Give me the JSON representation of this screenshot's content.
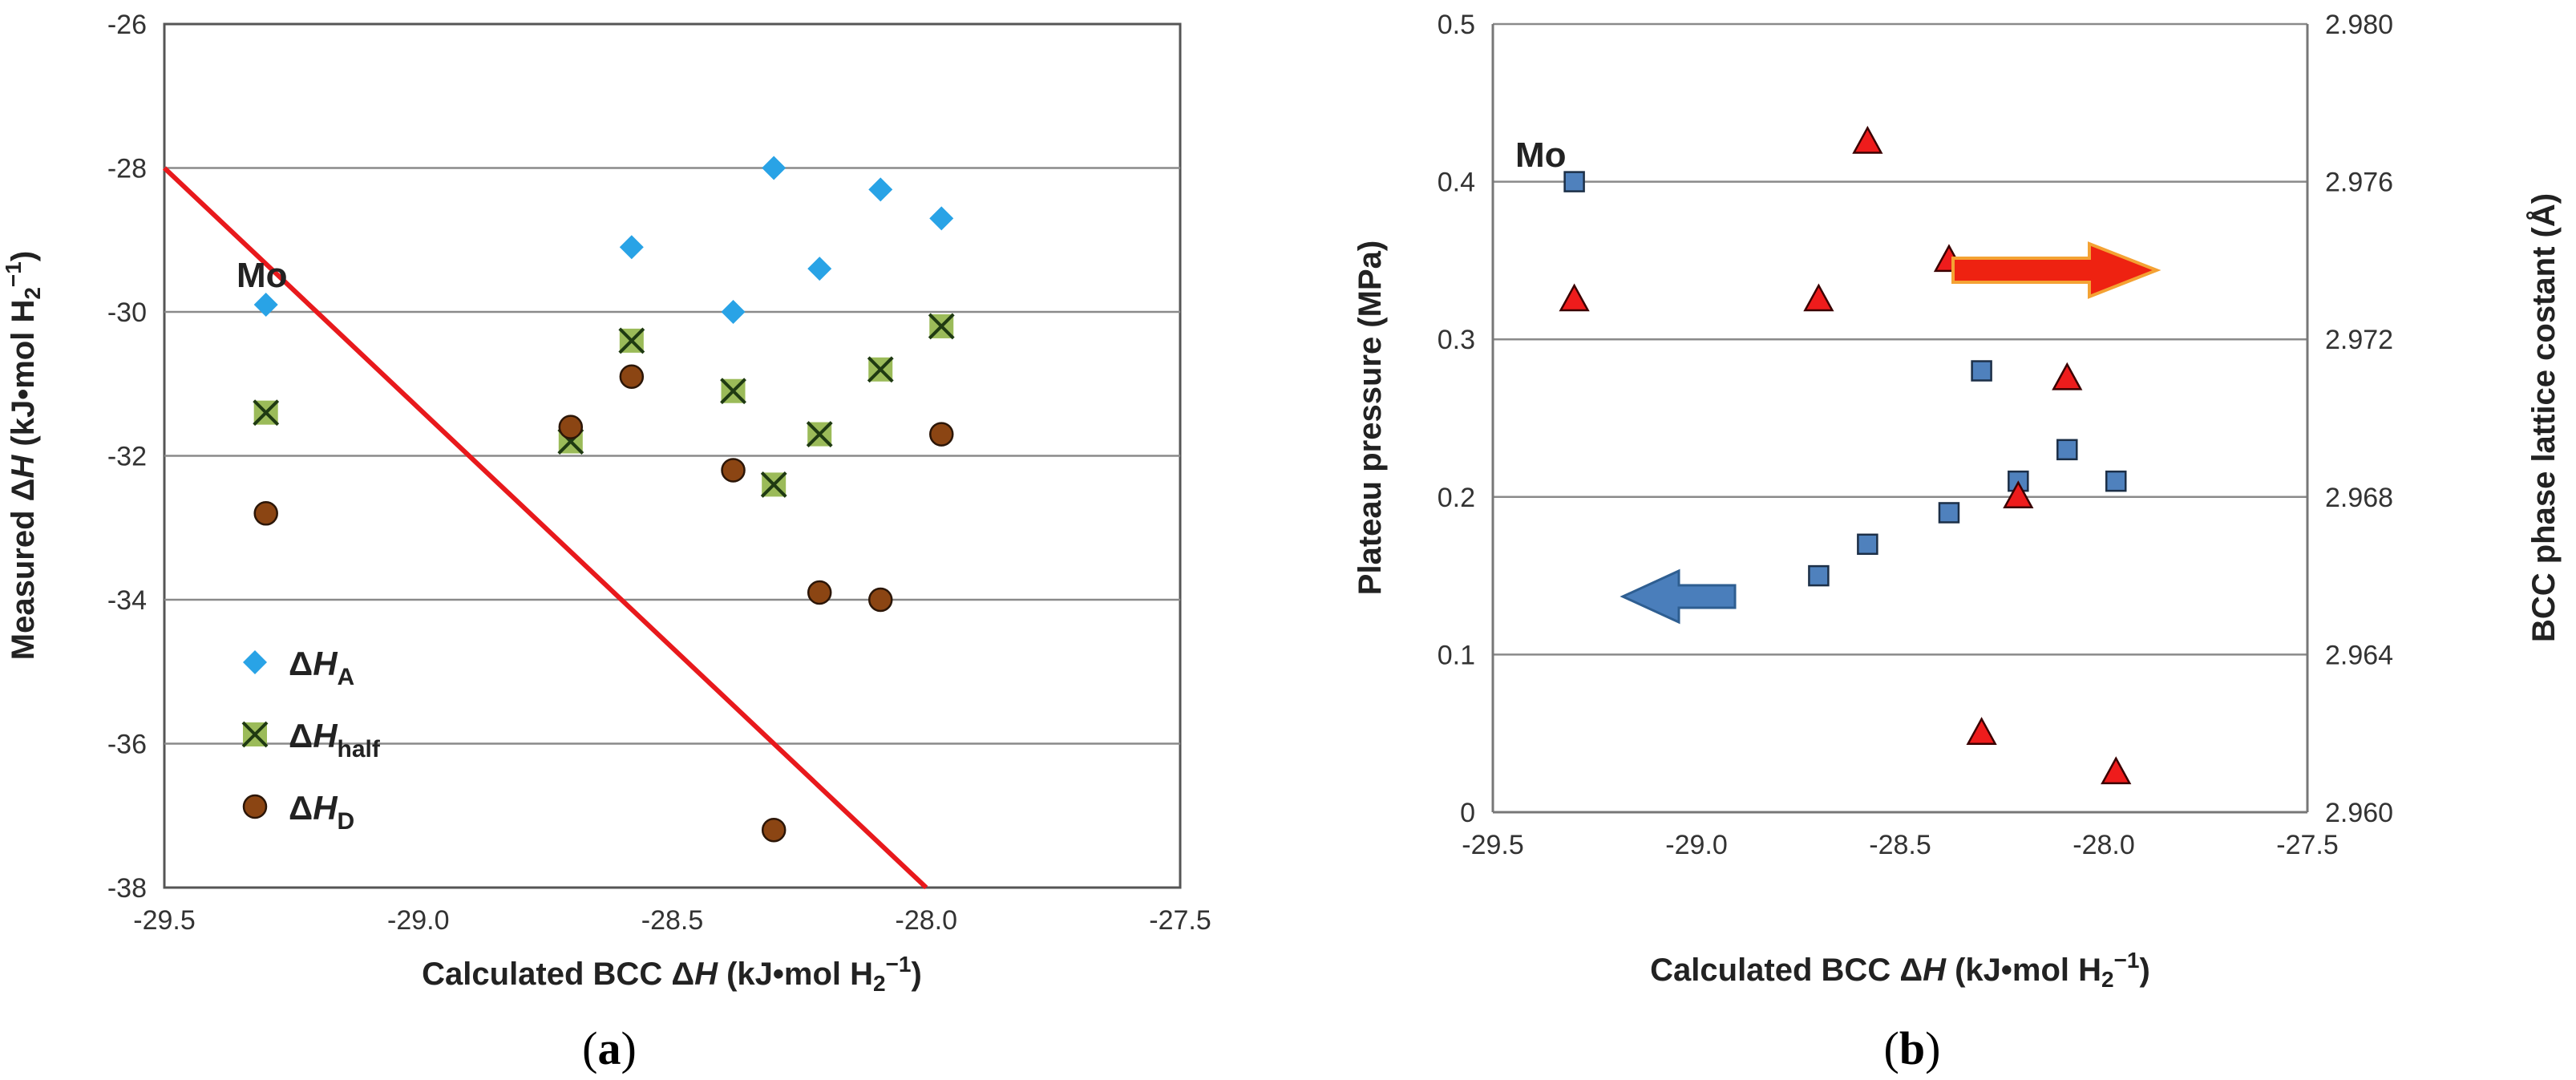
{
  "chart_data": [
    {
      "id": "a",
      "type": "scatter",
      "panel_label_open": "(",
      "panel_label_letter": "a",
      "panel_label_close": ")",
      "xlabel_pre": "Calculated BCC ",
      "xlabel_delta": "Δ",
      "xlabel_H": "H",
      "xlabel_post": " (kJ•mol H",
      "xlabel_sub": "2",
      "xlabel_sup": "−1",
      "xlabel_close": ")",
      "ylabel_pre": "Measured ",
      "ylabel_delta": "Δ",
      "ylabel_H": "H",
      "ylabel_post": " (kJ•mol H",
      "ylabel_sub": "2",
      "ylabel_sup": "−1",
      "ylabel_close": ")",
      "xlim": [
        -29.5,
        -27.5
      ],
      "ylim": [
        -38,
        -26
      ],
      "xticks": [
        -29.5,
        -29.0,
        -28.5,
        -28.0,
        -27.5
      ],
      "xtick_labels": [
        "-29.5",
        "-29.0",
        "-28.5",
        "-28.0",
        "-27.5"
      ],
      "yticks": [
        -38,
        -36,
        -34,
        -32,
        -30,
        -28,
        -26
      ],
      "ytick_labels": [
        "-38",
        "-36",
        "-34",
        "-32",
        "-30",
        "-28",
        "-26"
      ],
      "grid_y": true,
      "annotation": "Mo",
      "series": [
        {
          "name": "ΔH_A",
          "legend_delta": "Δ",
          "legend_H": "H",
          "legend_sub": "A",
          "marker": "diamond",
          "color": "#29a3e6",
          "x": [
            -29.3,
            -28.58,
            -28.38,
            -28.3,
            -28.21,
            -28.09,
            -27.97
          ],
          "y": [
            -29.9,
            -29.1,
            -30.0,
            -28.0,
            -29.4,
            -28.3,
            -28.7
          ]
        },
        {
          "name": "ΔH_half",
          "legend_delta": "Δ",
          "legend_H": "H",
          "legend_sub": "half",
          "marker": "x-box",
          "color": "#9bbb59",
          "x": [
            -29.3,
            -28.7,
            -28.58,
            -28.38,
            -28.3,
            -28.21,
            -28.09,
            -27.97
          ],
          "y": [
            -31.4,
            -31.8,
            -30.4,
            -31.1,
            -32.4,
            -31.7,
            -30.8,
            -30.2
          ]
        },
        {
          "name": "ΔH_D",
          "legend_delta": "Δ",
          "legend_H": "H",
          "legend_sub": "D",
          "marker": "circle",
          "color": "#8b4513",
          "x": [
            -29.3,
            -28.7,
            -28.58,
            -28.38,
            -28.3,
            -28.21,
            -28.09,
            -27.97
          ],
          "y": [
            -32.8,
            -31.6,
            -30.9,
            -32.2,
            -37.2,
            -33.9,
            -34.0,
            -31.7
          ]
        }
      ],
      "reference_line": {
        "x": [
          -29.5,
          -28.0
        ],
        "y": [
          -28.0,
          -38.0
        ],
        "color": "#e8191c"
      }
    },
    {
      "id": "b",
      "type": "scatter",
      "panel_label_open": "(",
      "panel_label_letter": "b",
      "panel_label_close": ")",
      "xlabel_pre": "Calculated BCC ",
      "xlabel_delta": "Δ",
      "xlabel_H": "H",
      "xlabel_post": " (kJ•mol H",
      "xlabel_sub": "2",
      "xlabel_sup": "−1",
      "xlabel_close": ")",
      "ylabel_left": "Plateau pressure (MPa)",
      "ylabel_right": "BCC phase lattice costant (Å)",
      "xlim": [
        -29.5,
        -27.5
      ],
      "ylim_left": [
        0,
        0.5
      ],
      "ylim_right": [
        2.96,
        2.98
      ],
      "xticks": [
        -29.5,
        -29.0,
        -28.5,
        -28.0,
        -27.5
      ],
      "xtick_labels": [
        "-29.5",
        "-29.0",
        "-28.5",
        "-28.0",
        "-27.5"
      ],
      "yticks_left": [
        0,
        0.1,
        0.2,
        0.3,
        0.4,
        0.5
      ],
      "ytick_labels_left": [
        "0",
        "0.1",
        "0.2",
        "0.3",
        "0.4",
        "0.5"
      ],
      "yticks_right": [
        2.96,
        2.964,
        2.968,
        2.972,
        2.976,
        2.98
      ],
      "ytick_labels_right": [
        "2.960",
        "2.964",
        "2.968",
        "2.972",
        "2.976",
        "2.980"
      ],
      "grid_y": true,
      "annotation": "Mo",
      "series": [
        {
          "name": "Plateau pressure",
          "axis": "left",
          "marker": "square",
          "color": "#4f81bd",
          "x": [
            -29.3,
            -28.7,
            -28.58,
            -28.38,
            -28.3,
            -28.21,
            -28.09,
            -27.97
          ],
          "y": [
            0.4,
            0.15,
            0.17,
            0.19,
            0.28,
            0.21,
            0.23,
            0.21
          ]
        },
        {
          "name": "BCC phase lattice constant",
          "axis": "right",
          "marker": "triangle",
          "color": "#ee1c1c",
          "x": [
            -29.3,
            -28.7,
            -28.58,
            -28.38,
            -28.3,
            -28.21,
            -28.09,
            -27.97
          ],
          "y": [
            2.973,
            2.973,
            2.977,
            2.974,
            2.962,
            2.968,
            2.971,
            2.961
          ]
        }
      ],
      "arrow_left_color": "#4a7ebb",
      "arrow_right_color": "#ee2211"
    }
  ]
}
